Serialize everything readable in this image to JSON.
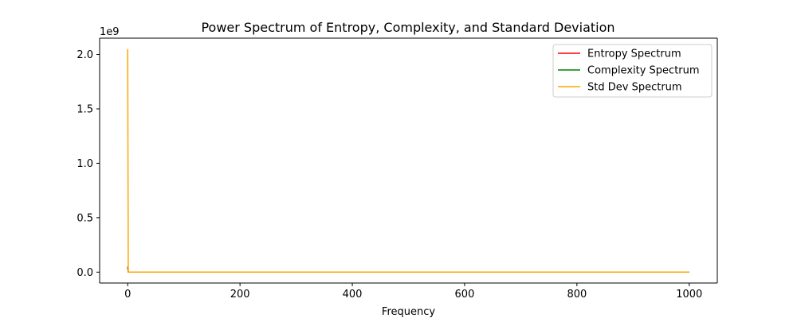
{
  "chart_data": {
    "type": "line",
    "title": "Power Spectrum of Entropy, Complexity, and Standard Deviation",
    "xlabel": "Frequency",
    "ylabel": "",
    "y_offset_label": "1e9",
    "xlim": [
      -50,
      1050
    ],
    "ylim": [
      -0.1,
      2.15
    ],
    "x_ticks": [
      0,
      200,
      400,
      600,
      800,
      1000
    ],
    "x_tick_labels": [
      "0",
      "200",
      "400",
      "600",
      "800",
      "1000"
    ],
    "y_ticks": [
      0.0,
      0.5,
      1.0,
      1.5,
      2.0
    ],
    "y_tick_labels": [
      "0.0",
      "0.5",
      "1.0",
      "1.5",
      "2.0"
    ],
    "grid": false,
    "legend_position": "top-right",
    "series": [
      {
        "name": "Entropy Spectrum",
        "color": "#ff0000",
        "x": [
          0,
          1,
          2,
          1000
        ],
        "y": [
          0.05,
          0.0,
          0.0,
          0.0
        ]
      },
      {
        "name": "Complexity Spectrum",
        "color": "#008000",
        "x": [
          0,
          1,
          2,
          1000
        ],
        "y": [
          0.05,
          0.0,
          0.0,
          0.0
        ]
      },
      {
        "name": "Std Dev Spectrum",
        "color": "#ffa500",
        "x": [
          0,
          1,
          2,
          1000
        ],
        "y": [
          2.05,
          0.0,
          0.0,
          0.0
        ]
      }
    ]
  }
}
